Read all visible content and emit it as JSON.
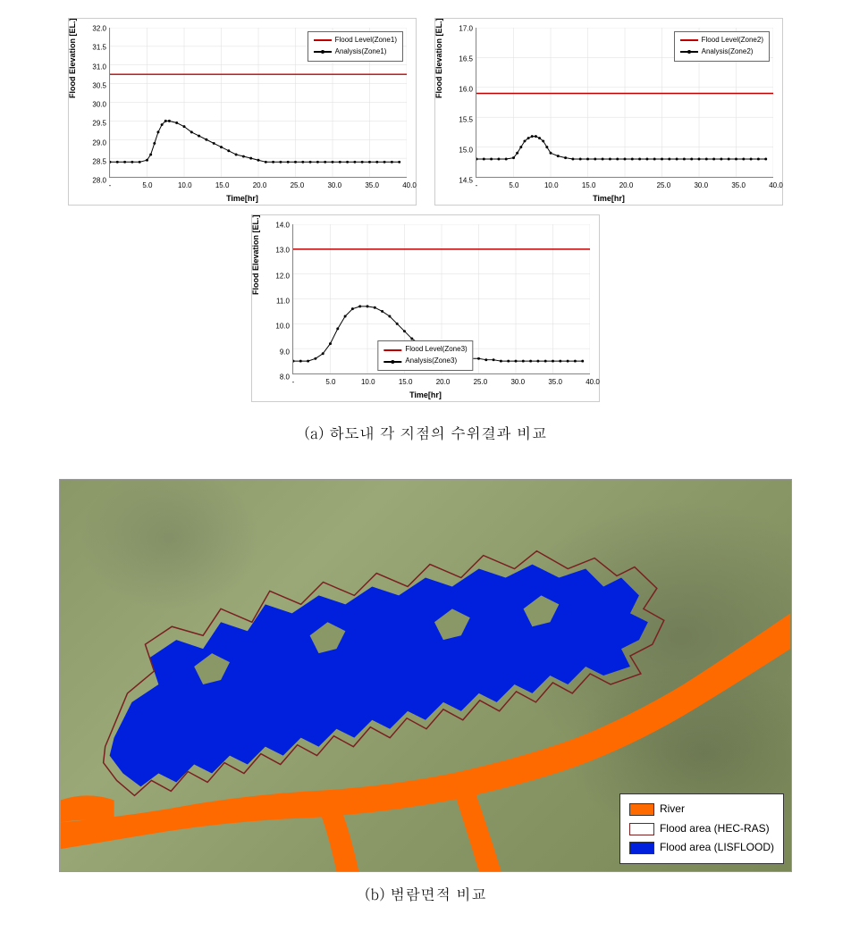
{
  "chart1": {
    "type": "line",
    "title": "",
    "xlabel": "Time[hr]",
    "ylabel": "Flood Elevation [EL.]",
    "xlim": [
      0,
      40
    ],
    "ylim": [
      28.0,
      32.0
    ],
    "xtick_step": 5.0,
    "ytick_step": 0.5,
    "xticks": [
      "-",
      "5.0",
      "10.0",
      "15.0",
      "20.0",
      "25.0",
      "30.0",
      "35.0",
      "40.0"
    ],
    "yticks": [
      "28.0",
      "28.5",
      "29.0",
      "29.5",
      "30.0",
      "30.5",
      "31.0",
      "31.5",
      "32.0"
    ],
    "series": [
      {
        "name": "Flood Level(Zone1)",
        "color": "#c00000",
        "style": "line",
        "line_width": 1.5,
        "value": 30.75
      },
      {
        "name": "Analysis(Zone1)",
        "color": "#000000",
        "style": "line_marker",
        "marker": "circle",
        "marker_size": 3,
        "line_width": 1,
        "data_x": [
          0,
          1,
          2,
          3,
          4,
          5,
          5.5,
          6,
          6.5,
          7,
          7.5,
          8,
          9,
          10,
          11,
          12,
          13,
          14,
          15,
          16,
          17,
          18,
          19,
          20,
          21,
          22,
          23,
          24,
          25,
          26,
          27,
          28,
          29,
          30,
          31,
          32,
          33,
          34,
          35,
          36,
          37,
          38,
          39
        ],
        "data_y": [
          28.4,
          28.4,
          28.4,
          28.4,
          28.4,
          28.45,
          28.6,
          28.9,
          29.2,
          29.4,
          29.5,
          29.5,
          29.45,
          29.35,
          29.2,
          29.1,
          29.0,
          28.9,
          28.8,
          28.7,
          28.6,
          28.55,
          28.5,
          28.45,
          28.4,
          28.4,
          28.4,
          28.4,
          28.4,
          28.4,
          28.4,
          28.4,
          28.4,
          28.4,
          28.4,
          28.4,
          28.4,
          28.4,
          28.4,
          28.4,
          28.4,
          28.4,
          28.4
        ]
      }
    ],
    "legend_position": "top-right",
    "background_color": "#ffffff",
    "grid_color": "#dddddd"
  },
  "chart2": {
    "type": "line",
    "xlabel": "Time[hr]",
    "ylabel": "Flood Elevation [EL.]",
    "xlim": [
      0,
      40
    ],
    "ylim": [
      14.5,
      17.0
    ],
    "xtick_step": 5.0,
    "ytick_step": 0.5,
    "xticks": [
      "-",
      "5.0",
      "10.0",
      "15.0",
      "20.0",
      "25.0",
      "30.0",
      "35.0",
      "40.0"
    ],
    "yticks": [
      "14.5",
      "15.0",
      "15.5",
      "16.0",
      "16.5",
      "17.0"
    ],
    "series": [
      {
        "name": "Flood Level(Zone2)",
        "color": "#c00000",
        "style": "line",
        "line_width": 1.5,
        "value": 15.9
      },
      {
        "name": "Analysis(Zone2)",
        "color": "#000000",
        "style": "line_marker",
        "marker": "circle",
        "marker_size": 3,
        "line_width": 1,
        "data_x": [
          0,
          1,
          2,
          3,
          4,
          5,
          5.5,
          6,
          6.5,
          7,
          7.5,
          8,
          8.5,
          9,
          9.5,
          10,
          11,
          12,
          13,
          14,
          15,
          16,
          17,
          18,
          19,
          20,
          21,
          22,
          23,
          24,
          25,
          26,
          27,
          28,
          29,
          30,
          31,
          32,
          33,
          34,
          35,
          36,
          37,
          38,
          39
        ],
        "data_y": [
          14.8,
          14.8,
          14.8,
          14.8,
          14.8,
          14.82,
          14.9,
          15.0,
          15.1,
          15.15,
          15.18,
          15.18,
          15.15,
          15.1,
          15.0,
          14.9,
          14.85,
          14.82,
          14.8,
          14.8,
          14.8,
          14.8,
          14.8,
          14.8,
          14.8,
          14.8,
          14.8,
          14.8,
          14.8,
          14.8,
          14.8,
          14.8,
          14.8,
          14.8,
          14.8,
          14.8,
          14.8,
          14.8,
          14.8,
          14.8,
          14.8,
          14.8,
          14.8,
          14.8,
          14.8
        ]
      }
    ],
    "legend_position": "top-right",
    "background_color": "#ffffff",
    "grid_color": "#dddddd"
  },
  "chart3": {
    "type": "line",
    "xlabel": "Time[hr]",
    "ylabel": "Flood Elevation [EL.]",
    "xlim": [
      0,
      40
    ],
    "ylim": [
      8.0,
      14.0
    ],
    "xtick_step": 5.0,
    "ytick_step": 1.0,
    "xticks": [
      "-",
      "5.0",
      "10.0",
      "15.0",
      "20.0",
      "25.0",
      "30.0",
      "35.0",
      "40.0"
    ],
    "yticks": [
      "8.0",
      "9.0",
      "10.0",
      "11.0",
      "12.0",
      "13.0",
      "14.0"
    ],
    "series": [
      {
        "name": "Flood Level(Zone3)",
        "color": "#c00000",
        "style": "line",
        "line_width": 1.5,
        "value": 13.0
      },
      {
        "name": "Analysis(Zone3)",
        "color": "#000000",
        "style": "line_marker",
        "marker": "circle",
        "marker_size": 3,
        "line_width": 1,
        "data_x": [
          0,
          1,
          2,
          3,
          4,
          5,
          6,
          7,
          8,
          9,
          10,
          11,
          12,
          13,
          14,
          15,
          16,
          17,
          18,
          19,
          20,
          21,
          22,
          23,
          24,
          25,
          26,
          27,
          28,
          29,
          30,
          31,
          32,
          33,
          34,
          35,
          36,
          37,
          38,
          39
        ],
        "data_y": [
          8.5,
          8.5,
          8.5,
          8.6,
          8.8,
          9.2,
          9.8,
          10.3,
          10.6,
          10.7,
          10.7,
          10.65,
          10.5,
          10.3,
          10.0,
          9.7,
          9.4,
          9.2,
          9.0,
          8.9,
          8.8,
          8.75,
          8.7,
          8.65,
          8.6,
          8.6,
          8.55,
          8.55,
          8.5,
          8.5,
          8.5,
          8.5,
          8.5,
          8.5,
          8.5,
          8.5,
          8.5,
          8.5,
          8.5,
          8.5
        ]
      }
    ],
    "legend_position": "bottom-center",
    "background_color": "#ffffff",
    "grid_color": "#dddddd"
  },
  "captions": {
    "a": "(a) 하도내 각 지점의 수위결과 비교",
    "b": "(b) 범람면적 비교"
  },
  "map": {
    "background_colors": [
      "#8a9868",
      "#9aa878",
      "#7a8858"
    ],
    "river_color": "#ff6a00",
    "flood_lisflood_color": "#0020dd",
    "flood_hecras_outline": "#7a2020",
    "legend": [
      {
        "label": "River",
        "color": "#ff6a00",
        "type": "fill"
      },
      {
        "label": "Flood area (HEC-RAS)",
        "color": "#7a2020",
        "type": "outline"
      },
      {
        "label": "Flood area (LISFLOOD)",
        "color": "#0020dd",
        "type": "fill"
      }
    ]
  }
}
